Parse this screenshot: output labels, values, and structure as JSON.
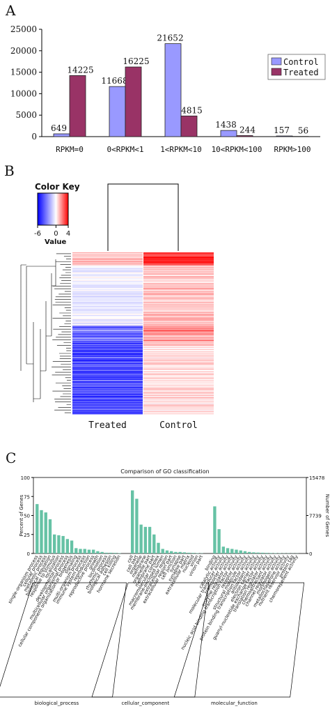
{
  "chart_data": [
    {
      "panel_label": "A",
      "type": "bar",
      "categories": [
        "RPKM=0",
        "0<RPKM<1",
        "1<RPKM<10",
        "10<RPKM<100",
        "RPKM>100"
      ],
      "series": [
        {
          "name": "Control",
          "color": "#9999ff",
          "values": [
            649,
            11668,
            21652,
            1438,
            157
          ]
        },
        {
          "name": "Treated",
          "color": "#993366",
          "values": [
            14225,
            16225,
            4815,
            244,
            56
          ]
        }
      ],
      "ylim": [
        0,
        25000
      ],
      "yticks": [
        0,
        5000,
        10000,
        15000,
        20000,
        25000
      ],
      "legend_position": "right"
    },
    {
      "panel_label": "B",
      "type": "heatmap",
      "columns": [
        "Treated",
        "Control"
      ],
      "color_key": {
        "title": "Color Key",
        "label": "Value",
        "ticks": [
          "-6",
          "0",
          "4"
        ],
        "range": [
          -6,
          4
        ],
        "low_color": "#0000ff",
        "mid_color": "#ffffff",
        "high_color": "#ff0000"
      }
    },
    {
      "panel_label": "C",
      "type": "bar",
      "title": "Comparison of GO classification",
      "ylabel": "Percent of Genes",
      "ylabel_right": "Number of Genes",
      "yticks": [
        "0",
        "25",
        "50",
        "75",
        "100"
      ],
      "yticks_right": [
        "0",
        "7739",
        "15478"
      ],
      "ylim": [
        0,
        100
      ],
      "bar_color": "#66c2a5",
      "right_axis_color": "#66c2a5",
      "groups": [
        {
          "name": "biological_process",
          "categories": [
            "single-organism process",
            "cellular process",
            "metabolic process",
            "biological regulation",
            "response to stimulus",
            "localization",
            "developmental process",
            "multicellular organismal process",
            "cellular component organization or biogenesis",
            "signaling",
            "multi-organism process",
            "immune system process",
            "reproduction",
            "reproductive process",
            "growth",
            "locomotion",
            "rhythmic process",
            "biological adhesion",
            "cell killing",
            "hormone secretion"
          ],
          "values": [
            65,
            57,
            54,
            45,
            25,
            24,
            23,
            19,
            17,
            7,
            6,
            6,
            5,
            5,
            3,
            2,
            1,
            1,
            0.8,
            0.5
          ]
        },
        {
          "name": "cellular_component",
          "categories": [
            "cell",
            "cell part",
            "organelle",
            "membrane",
            "organelle part",
            "membrane part",
            "macromolecular complex",
            "membrane-enclosed lumen",
            "extracellular region",
            "extracellular region part",
            "cell junction",
            "synapse",
            "synapse part",
            "extracellular matrix",
            "nucleoid",
            "virion",
            "virion part"
          ],
          "values": [
            83,
            72,
            38,
            35,
            35,
            25,
            14,
            6,
            4,
            3,
            2,
            2,
            1.5,
            1,
            0.8,
            0.5,
            0.3
          ]
        },
        {
          "name": "molecular_function",
          "categories": [
            "binding",
            "catalytic activity",
            "molecular transducer activity",
            "transporter activity",
            "enzyme regulator activity",
            "nucleic acid binding transcription factor activity",
            "receptor activity",
            "structural molecule activity",
            "protein binding transcription factor activity",
            "antioxidant activity",
            "electron carrier activity",
            "guanyl-nucleotide exchange factor activity",
            "translation regulator activity",
            "chemoattractant activity",
            "channel regulator activity",
            "morphogen activity",
            "metallochaperone activity",
            "nutrient reservoir activity",
            "protein tag",
            "chemorepellent activity"
          ],
          "values": [
            62,
            32,
            9,
            7,
            6,
            5,
            4,
            3,
            2,
            1.5,
            1.2,
            1,
            0.8,
            0.6,
            0.5,
            0.4,
            0.3,
            0.3,
            0.2,
            0.2
          ]
        }
      ]
    }
  ]
}
